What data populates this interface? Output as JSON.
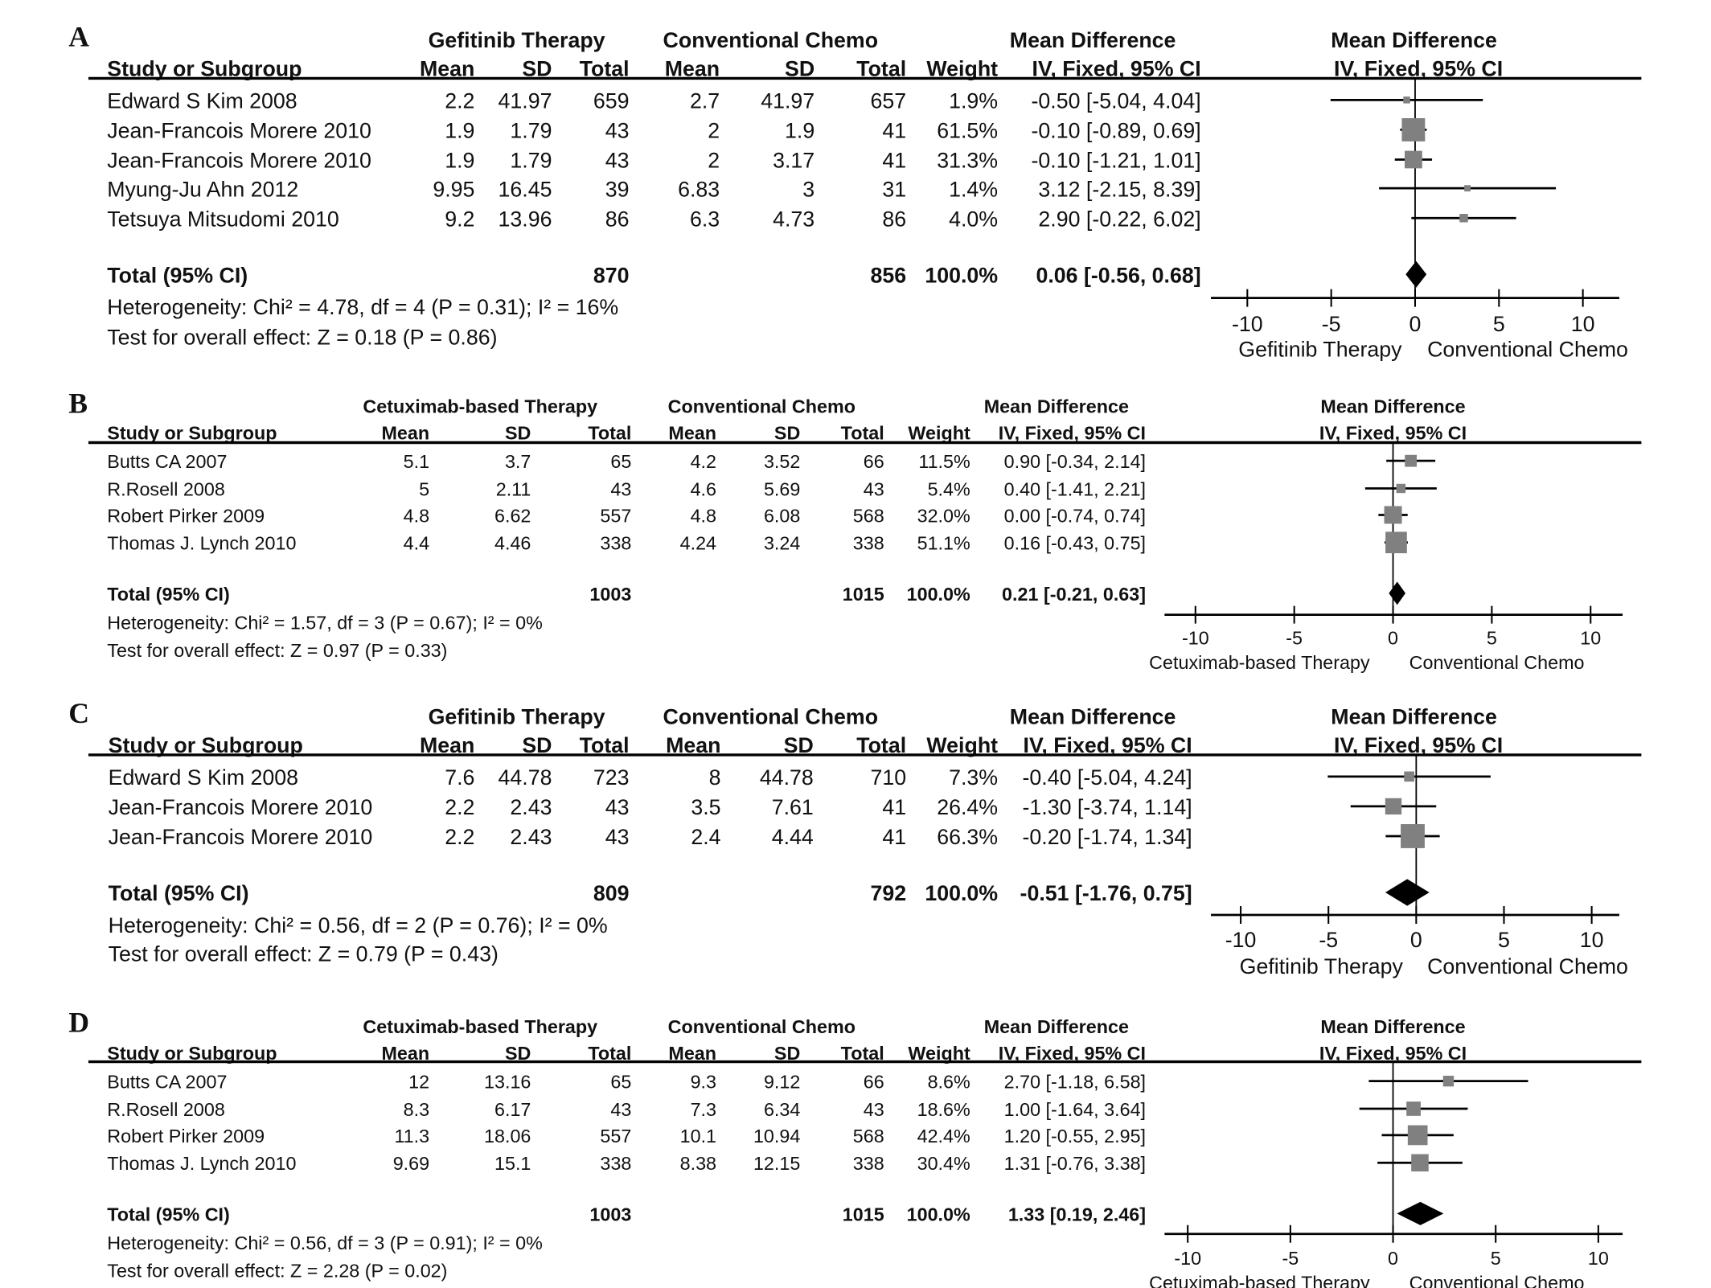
{
  "chart_data": {
    "type": "forest",
    "panels": [
      {
        "letter": "A",
        "group1": "Gefitinib Therapy",
        "group2": "Conventional Chemo",
        "md_header": "Mean Difference",
        "columns": [
          "Study or Subgroup",
          "Mean",
          "SD",
          "Total",
          "Mean",
          "SD",
          "Total",
          "Weight",
          "IV, Fixed, 95% CI",
          "IV, Fixed, 95% CI"
        ],
        "rows": [
          {
            "study": "Edward S Kim 2008",
            "m1": "2.2",
            "sd1": "41.97",
            "n1": "659",
            "m2": "2.7",
            "sd2": "41.97",
            "n2": "657",
            "weight": "1.9%",
            "ci": "-0.50 [-5.04, 4.04]",
            "md": -0.5,
            "lo": -5.04,
            "hi": 4.04,
            "w": 1.9
          },
          {
            "study": "Jean-Francois Morere 2010",
            "m1": "1.9",
            "sd1": "1.79",
            "n1": "43",
            "m2": "2",
            "sd2": "1.9",
            "n2": "41",
            "weight": "61.5%",
            "ci": "-0.10 [-0.89, 0.69]",
            "md": -0.1,
            "lo": -0.89,
            "hi": 0.69,
            "w": 61.5
          },
          {
            "study": "Jean-Francois Morere 2010",
            "m1": "1.9",
            "sd1": "1.79",
            "n1": "43",
            "m2": "2",
            "sd2": "3.17",
            "n2": "41",
            "weight": "31.3%",
            "ci": "-0.10 [-1.21, 1.01]",
            "md": -0.1,
            "lo": -1.21,
            "hi": 1.01,
            "w": 31.3
          },
          {
            "study": "Myung-Ju Ahn 2012",
            "m1": "9.95",
            "sd1": "16.45",
            "n1": "39",
            "m2": "6.83",
            "sd2": "3",
            "n2": "31",
            "weight": "1.4%",
            "ci": "3.12 [-2.15, 8.39]",
            "md": 3.12,
            "lo": -2.15,
            "hi": 8.39,
            "w": 1.4
          },
          {
            "study": "Tetsuya Mitsudomi 2010",
            "m1": "9.2",
            "sd1": "13.96",
            "n1": "86",
            "m2": "6.3",
            "sd2": "4.73",
            "n2": "86",
            "weight": "4.0%",
            "ci": "2.90 [-0.22, 6.02]",
            "md": 2.9,
            "lo": -0.22,
            "hi": 6.02,
            "w": 4.0
          }
        ],
        "total": {
          "label": "Total (95% CI)",
          "n1": "870",
          "n2": "856",
          "weight": "100.0%",
          "ci": "0.06 [-0.56, 0.68]",
          "md": 0.06,
          "lo": -0.56,
          "hi": 0.68
        },
        "heterogeneity": "Heterogeneity: Chi² = 4.78, df = 4 (P = 0.31); I² = 16%",
        "overall": "Test for overall effect: Z = 0.18 (P = 0.86)",
        "ticks": [
          "-10",
          "-5",
          "0",
          "5",
          "10"
        ],
        "xlim": [
          -10,
          10
        ],
        "favours_left": "Gefitinib Therapy",
        "favours_right": "Conventional Chemo"
      },
      {
        "letter": "B",
        "group1": "Cetuximab-based Therapy",
        "group2": "Conventional Chemo",
        "md_header": "Mean Difference",
        "columns": [
          "Study or Subgroup",
          "Mean",
          "SD",
          "Total",
          "Mean",
          "SD",
          "Total",
          "Weight",
          "IV, Fixed, 95% CI",
          "IV, Fixed, 95% CI"
        ],
        "rows": [
          {
            "study": "Butts CA 2007",
            "m1": "5.1",
            "sd1": "3.7",
            "n1": "65",
            "m2": "4.2",
            "sd2": "3.52",
            "n2": "66",
            "weight": "11.5%",
            "ci": "0.90 [-0.34, 2.14]",
            "md": 0.9,
            "lo": -0.34,
            "hi": 2.14,
            "w": 11.5
          },
          {
            "study": "R.Rosell 2008",
            "m1": "5",
            "sd1": "2.11",
            "n1": "43",
            "m2": "4.6",
            "sd2": "5.69",
            "n2": "43",
            "weight": "5.4%",
            "ci": "0.40 [-1.41, 2.21]",
            "md": 0.4,
            "lo": -1.41,
            "hi": 2.21,
            "w": 5.4
          },
          {
            "study": "Robert Pirker 2009",
            "m1": "4.8",
            "sd1": "6.62",
            "n1": "557",
            "m2": "4.8",
            "sd2": "6.08",
            "n2": "568",
            "weight": "32.0%",
            "ci": "0.00 [-0.74, 0.74]",
            "md": 0.0,
            "lo": -0.74,
            "hi": 0.74,
            "w": 32.0
          },
          {
            "study": "Thomas J. Lynch 2010",
            "m1": "4.4",
            "sd1": "4.46",
            "n1": "338",
            "m2": "4.24",
            "sd2": "3.24",
            "n2": "338",
            "weight": "51.1%",
            "ci": "0.16 [-0.43, 0.75]",
            "md": 0.16,
            "lo": -0.43,
            "hi": 0.75,
            "w": 51.1
          }
        ],
        "total": {
          "label": "Total (95% CI)",
          "n1": "1003",
          "n2": "1015",
          "weight": "100.0%",
          "ci": "0.21 [-0.21, 0.63]",
          "md": 0.21,
          "lo": -0.21,
          "hi": 0.63
        },
        "heterogeneity": "Heterogeneity: Chi² = 1.57, df = 3 (P = 0.67); I² = 0%",
        "overall": "Test for overall effect: Z = 0.97 (P = 0.33)",
        "ticks": [
          "-10",
          "-5",
          "0",
          "5",
          "10"
        ],
        "xlim": [
          -10,
          10
        ],
        "favours_left": "Cetuximab-based Therapy",
        "favours_right": "Conventional Chemo"
      },
      {
        "letter": "C",
        "group1": "Gefitinib Therapy",
        "group2": "Conventional Chemo",
        "md_header": "Mean Difference",
        "columns": [
          "Study or Subgroup",
          "Mean",
          "SD",
          "Total",
          "Mean",
          "SD",
          "Total",
          "Weight",
          "IV, Fixed, 95% CI",
          "IV, Fixed, 95% CI"
        ],
        "rows": [
          {
            "study": "Edward S Kim 2008",
            "m1": "7.6",
            "sd1": "44.78",
            "n1": "723",
            "m2": "8",
            "sd2": "44.78",
            "n2": "710",
            "weight": "7.3%",
            "ci": "-0.40 [-5.04, 4.24]",
            "md": -0.4,
            "lo": -5.04,
            "hi": 4.24,
            "w": 7.3
          },
          {
            "study": "Jean-Francois Morere 2010",
            "m1": "2.2",
            "sd1": "2.43",
            "n1": "43",
            "m2": "3.5",
            "sd2": "7.61",
            "n2": "41",
            "weight": "26.4%",
            "ci": "-1.30 [-3.74, 1.14]",
            "md": -1.3,
            "lo": -3.74,
            "hi": 1.14,
            "w": 26.4
          },
          {
            "study": "Jean-Francois Morere 2010",
            "m1": "2.2",
            "sd1": "2.43",
            "n1": "43",
            "m2": "2.4",
            "sd2": "4.44",
            "n2": "41",
            "weight": "66.3%",
            "ci": "-0.20 [-1.74, 1.34]",
            "md": -0.2,
            "lo": -1.74,
            "hi": 1.34,
            "w": 66.3
          }
        ],
        "total": {
          "label": "Total (95% CI)",
          "n1": "809",
          "n2": "792",
          "weight": "100.0%",
          "ci": "-0.51 [-1.76, 0.75]",
          "md": -0.51,
          "lo": -1.76,
          "hi": 0.75
        },
        "heterogeneity": "Heterogeneity: Chi² = 0.56, df = 2 (P = 0.76); I² = 0%",
        "overall": "Test for overall effect: Z = 0.79 (P = 0.43)",
        "ticks": [
          "-10",
          "-5",
          "0",
          "5",
          "10"
        ],
        "xlim": [
          -10,
          10
        ],
        "favours_left": "Gefitinib Therapy",
        "favours_right": "Conventional Chemo"
      },
      {
        "letter": "D",
        "group1": "Cetuximab-based Therapy",
        "group2": "Conventional Chemo",
        "md_header": "Mean Difference",
        "columns": [
          "Study or Subgroup",
          "Mean",
          "SD",
          "Total",
          "Mean",
          "SD",
          "Total",
          "Weight",
          "IV, Fixed, 95% CI",
          "IV, Fixed, 95% CI"
        ],
        "rows": [
          {
            "study": "Butts CA 2007",
            "m1": "12",
            "sd1": "13.16",
            "n1": "65",
            "m2": "9.3",
            "sd2": "9.12",
            "n2": "66",
            "weight": "8.6%",
            "ci": "2.70 [-1.18, 6.58]",
            "md": 2.7,
            "lo": -1.18,
            "hi": 6.58,
            "w": 8.6
          },
          {
            "study": "R.Rosell 2008",
            "m1": "8.3",
            "sd1": "6.17",
            "n1": "43",
            "m2": "7.3",
            "sd2": "6.34",
            "n2": "43",
            "weight": "18.6%",
            "ci": "1.00 [-1.64, 3.64]",
            "md": 1.0,
            "lo": -1.64,
            "hi": 3.64,
            "w": 18.6
          },
          {
            "study": "Robert Pirker 2009",
            "m1": "11.3",
            "sd1": "18.06",
            "n1": "557",
            "m2": "10.1",
            "sd2": "10.94",
            "n2": "568",
            "weight": "42.4%",
            "ci": "1.20 [-0.55, 2.95]",
            "md": 1.2,
            "lo": -0.55,
            "hi": 2.95,
            "w": 42.4
          },
          {
            "study": "Thomas J. Lynch 2010",
            "m1": "9.69",
            "sd1": "15.1",
            "n1": "338",
            "m2": "8.38",
            "sd2": "12.15",
            "n2": "338",
            "weight": "30.4%",
            "ci": "1.31 [-0.76, 3.38]",
            "md": 1.31,
            "lo": -0.76,
            "hi": 3.38,
            "w": 30.4
          }
        ],
        "total": {
          "label": "Total (95% CI)",
          "n1": "1003",
          "n2": "1015",
          "weight": "100.0%",
          "ci": "1.33 [0.19, 2.46]",
          "md": 1.33,
          "lo": 0.19,
          "hi": 2.46
        },
        "heterogeneity": "Heterogeneity: Chi² = 0.56, df = 3 (P = 0.91); I² = 0%",
        "overall": "Test for overall effect: Z = 2.28 (P = 0.02)",
        "ticks": [
          "-10",
          "-5",
          "0",
          "5",
          "10"
        ],
        "xlim": [
          -10,
          10
        ],
        "favours_left": "Cetuximab-based Therapy",
        "favours_right": "Conventional Chemo"
      }
    ]
  },
  "colors": {
    "marker": "#808080",
    "line": "#000000",
    "diamond": "#000000"
  }
}
